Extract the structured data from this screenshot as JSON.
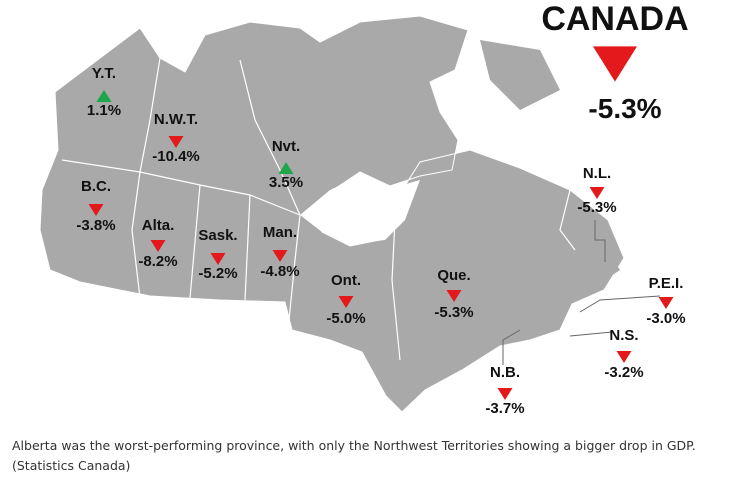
{
  "map": {
    "national": {
      "name": "CANADA",
      "value": -5.3,
      "value_label": "-5.3%"
    },
    "regions": [
      {
        "name": "Y.T.",
        "value": 1.1,
        "value_label": "1.1%"
      },
      {
        "name": "N.W.T.",
        "value": -10.4,
        "value_label": "-10.4%"
      },
      {
        "name": "Nvt.",
        "value": 3.5,
        "value_label": "3.5%"
      },
      {
        "name": "B.C.",
        "value": -3.8,
        "value_label": "-3.8%"
      },
      {
        "name": "Alta.",
        "value": -8.2,
        "value_label": "-8.2%"
      },
      {
        "name": "Sask.",
        "value": -5.2,
        "value_label": "-5.2%"
      },
      {
        "name": "Man.",
        "value": -4.8,
        "value_label": "-4.8%"
      },
      {
        "name": "Ont.",
        "value": -5.0,
        "value_label": "-5.0%"
      },
      {
        "name": "Que.",
        "value": -5.3,
        "value_label": "-5.3%"
      },
      {
        "name": "N.L.",
        "value": -5.3,
        "value_label": "-5.3%"
      },
      {
        "name": "P.E.I.",
        "value": -3.0,
        "value_label": "-3.0%"
      },
      {
        "name": "N.S.",
        "value": -3.2,
        "value_label": "-3.2%"
      },
      {
        "name": "N.B.",
        "value": -3.7,
        "value_label": "-3.7%"
      }
    ],
    "up_color": "#1ea64b",
    "down_color": "#e3191c"
  },
  "caption": [
    "Alberta was the worst-performing province, with only the Northwest Territories showing a bigger drop in GDP.",
    "(Statistics Canada)"
  ]
}
